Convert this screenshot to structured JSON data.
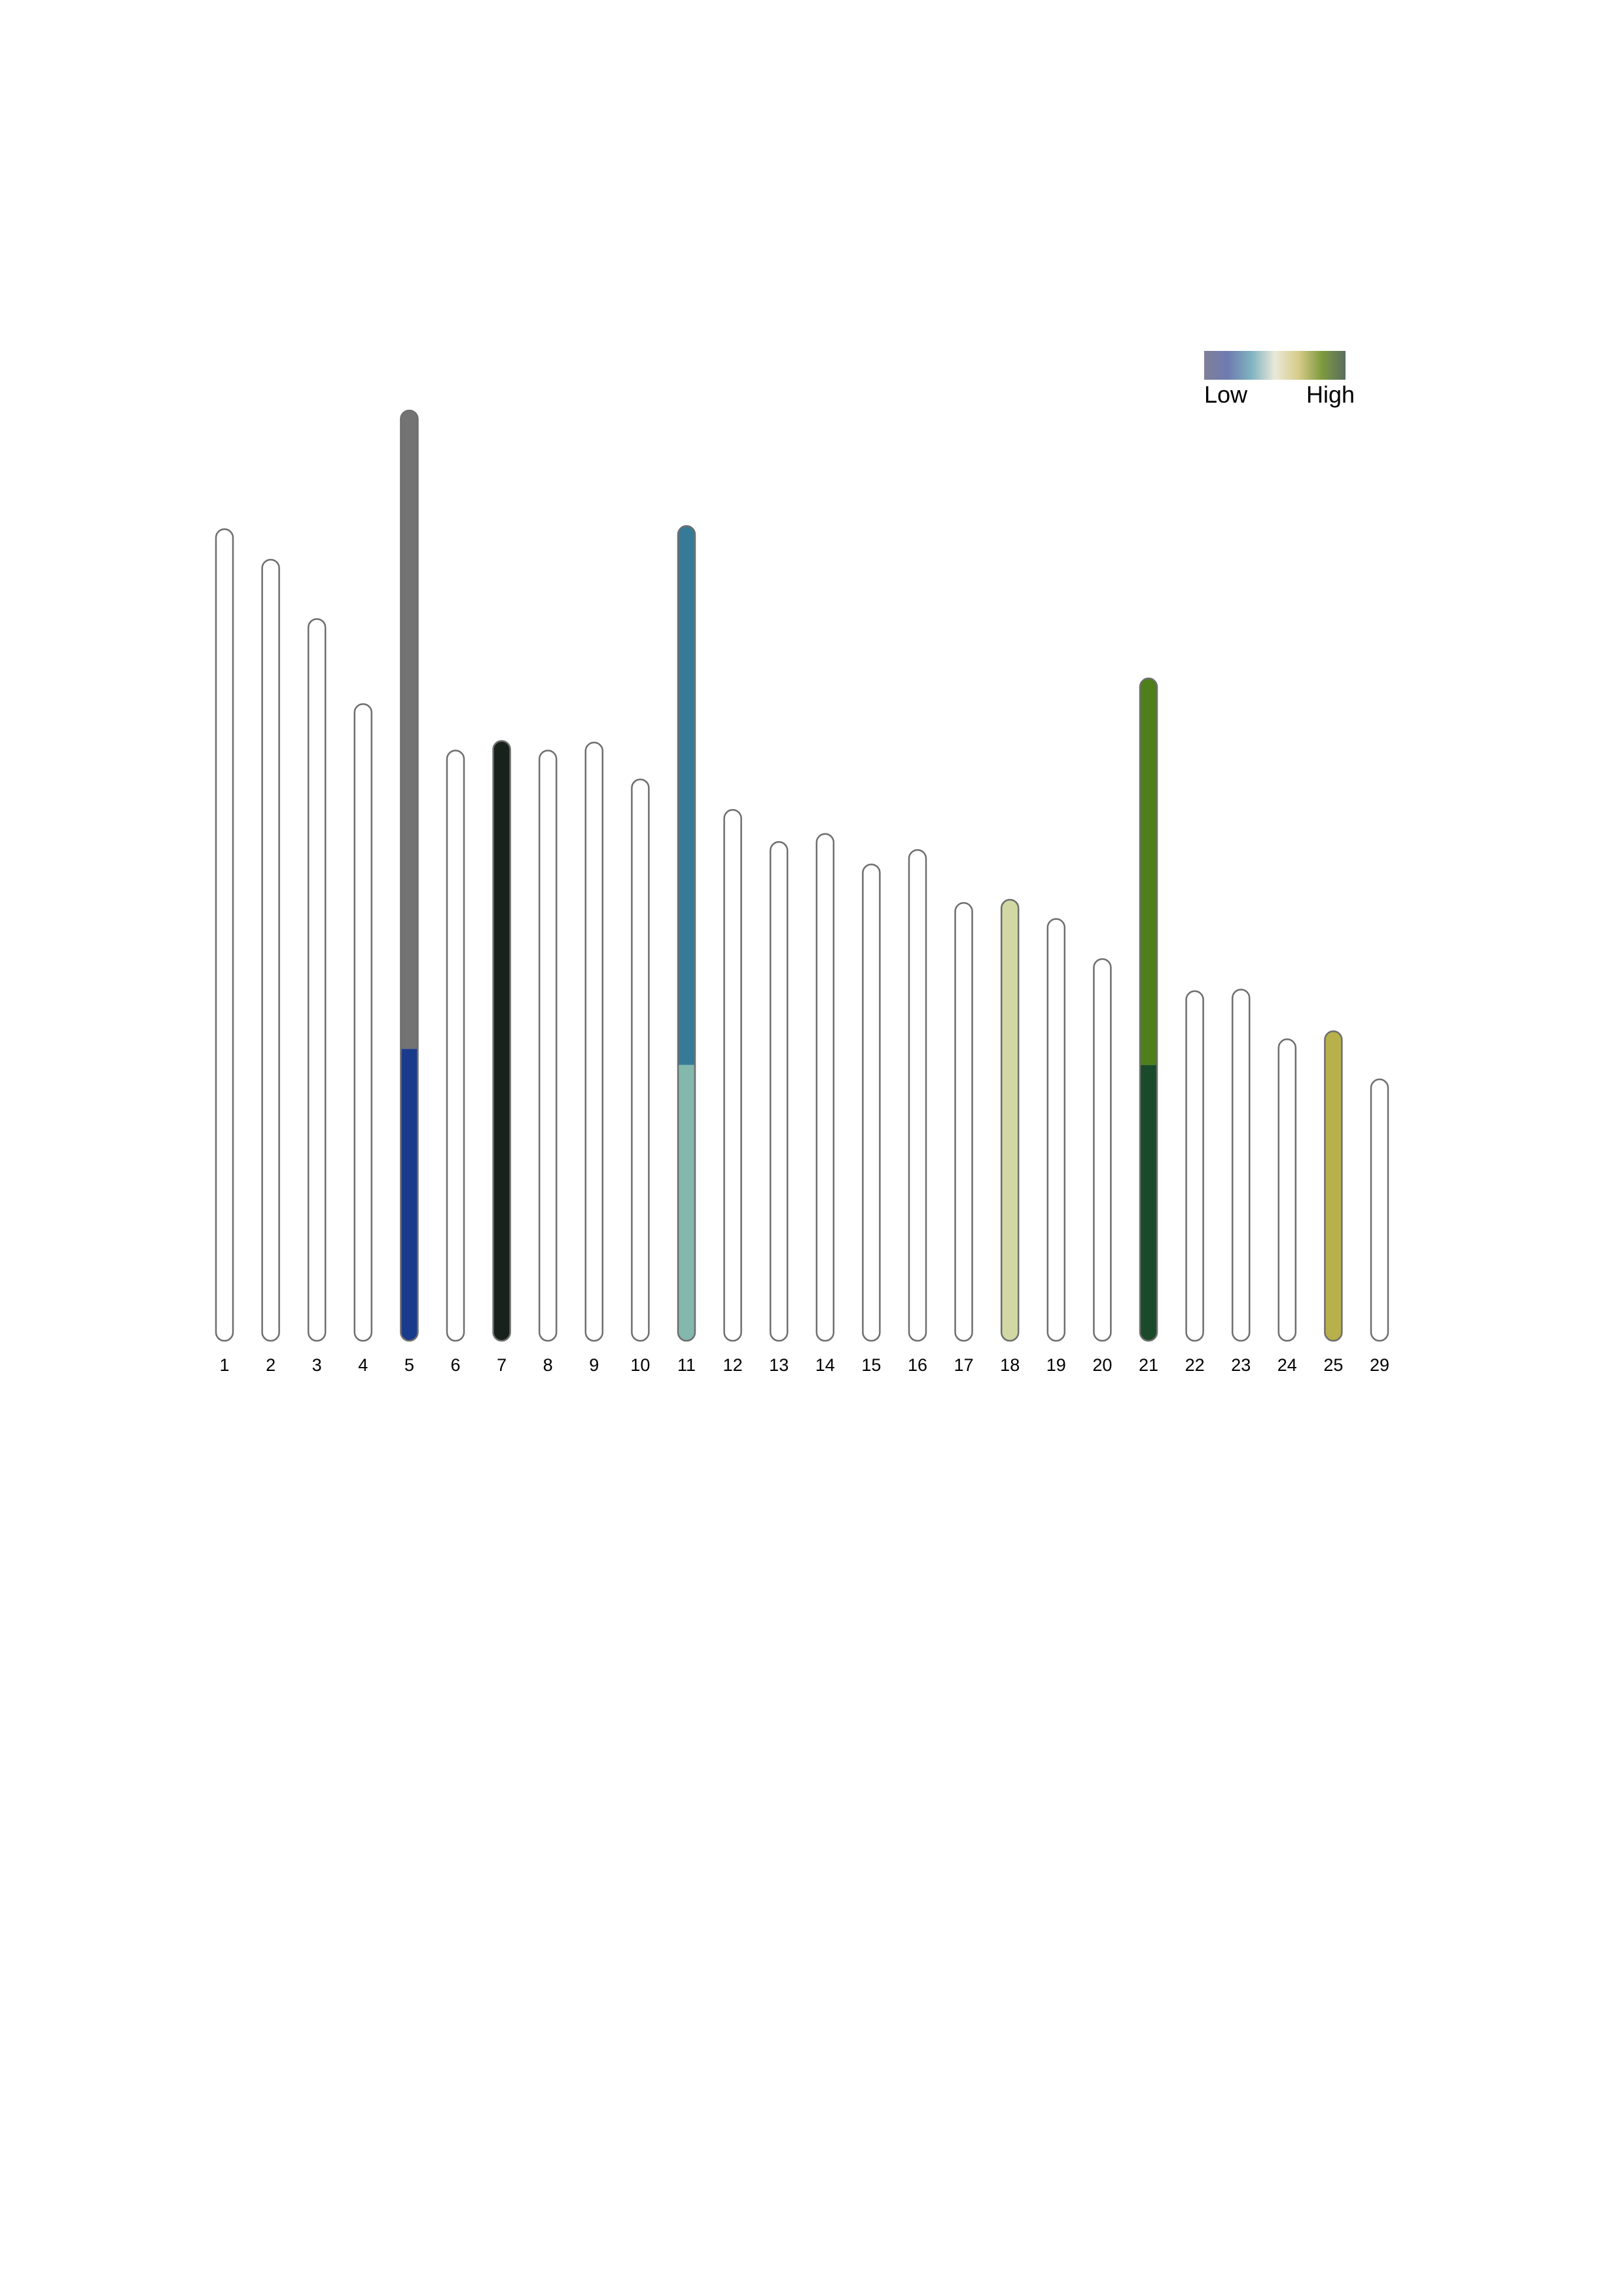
{
  "chart_data": {
    "type": "bar",
    "title": "",
    "xlabel": "",
    "ylabel": "",
    "ylim": [
      0,
      286
    ],
    "categories": [
      "1",
      "2",
      "3",
      "4",
      "5",
      "6",
      "7",
      "8",
      "9",
      "10",
      "11",
      "12",
      "13",
      "14",
      "15",
      "16",
      "17",
      "18",
      "19",
      "20",
      "21",
      "22",
      "23",
      "24",
      "25",
      "29"
    ],
    "values": [
      253,
      243.5,
      225,
      198.5,
      290,
      184,
      187,
      184,
      186.5,
      175,
      254,
      165.5,
      155.5,
      158,
      148.5,
      153,
      136.5,
      137.5,
      131.5,
      119,
      206.5,
      109,
      109.5,
      94,
      96.5,
      81.5
    ],
    "segments": [
      {
        "category": "5",
        "from": 0,
        "to": 91,
        "color": "#1a3a8c"
      },
      {
        "category": "5",
        "from": 91,
        "to": 290,
        "color": "#737373"
      },
      {
        "category": "7",
        "from": 0,
        "to": 187,
        "color": "#18221a"
      },
      {
        "category": "11",
        "from": 0,
        "to": 86,
        "color": "#84b8ad"
      },
      {
        "category": "11",
        "from": 86,
        "to": 254,
        "color": "#357b97"
      },
      {
        "category": "18",
        "from": 0,
        "to": 137.5,
        "color": "#d2d8a3"
      },
      {
        "category": "21",
        "from": 0,
        "to": 86,
        "color": "#1a4a2a"
      },
      {
        "category": "21",
        "from": 86,
        "to": 206.5,
        "color": "#4f7f1a"
      },
      {
        "category": "25",
        "from": 0,
        "to": 96.5,
        "color": "#b8b04a"
      }
    ],
    "empty_fill": "#ffffff",
    "outline_color": "#6e6e6e",
    "legend": {
      "position": "top-right",
      "low_label": "Low",
      "high_label": "High",
      "gradient_colors": [
        "#7f7f99",
        "#6f7bb0",
        "#7fb3c0",
        "#e8e8d8",
        "#d8cc8a",
        "#7e9a3f",
        "#5a6e5e"
      ]
    }
  }
}
